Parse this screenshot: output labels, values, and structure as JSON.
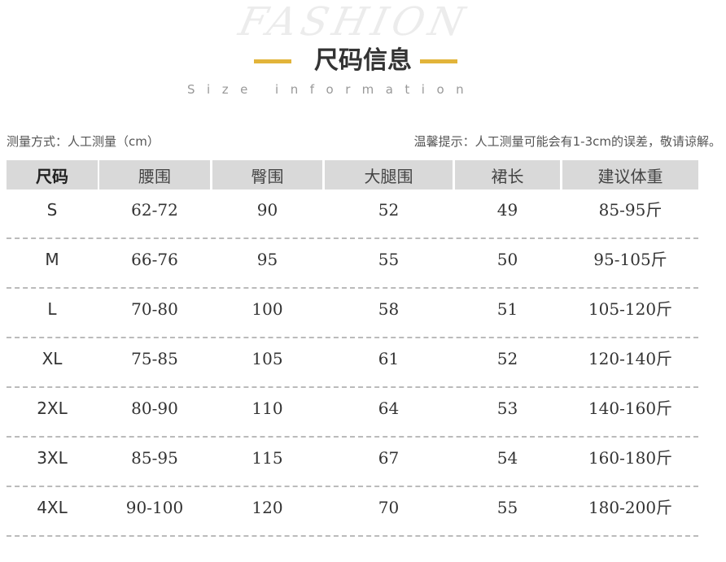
{
  "watermark": "FASHION",
  "title": "尺码信息",
  "subtitle": "Size information",
  "accent_color": "#e2b43a",
  "note_left": "测量方式：人工测量（cm）",
  "note_right": "温馨提示：人工测量可能会有1-3cm的误差，敬请谅解。",
  "table": {
    "headers": [
      "尺码",
      "腰围",
      "臀围",
      "大腿围",
      "裙长",
      "建议体重"
    ],
    "rows": [
      [
        "S",
        "62-72",
        "90",
        "52",
        "49",
        "85-95斤"
      ],
      [
        "M",
        "66-76",
        "95",
        "55",
        "50",
        "95-105斤"
      ],
      [
        "L",
        "70-80",
        "100",
        "58",
        "51",
        "105-120斤"
      ],
      [
        "XL",
        "75-85",
        "105",
        "61",
        "52",
        "120-140斤"
      ],
      [
        "2XL",
        "80-90",
        "110",
        "64",
        "53",
        "140-160斤"
      ],
      [
        "3XL",
        "85-95",
        "115",
        "67",
        "54",
        "160-180斤"
      ],
      [
        "4XL",
        "90-100",
        "120",
        "70",
        "55",
        "180-200斤"
      ]
    ]
  }
}
